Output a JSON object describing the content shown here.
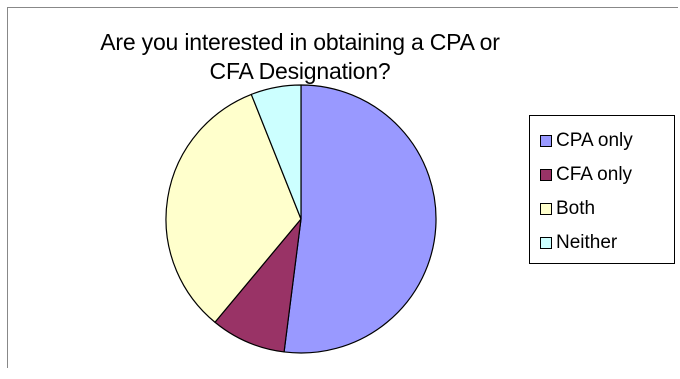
{
  "chart_data": {
    "type": "pie",
    "title_lines": [
      "Are you interested in obtaining a CPA or",
      "CFA Designation?"
    ],
    "categories": [
      "CPA only",
      "CFA only",
      "Both",
      "Neither"
    ],
    "values": [
      52,
      9,
      33,
      6
    ],
    "colors": [
      "#9999ff",
      "#993366",
      "#ffffcc",
      "#ccffff"
    ],
    "legend_position": "right",
    "start_angle_deg": 0,
    "direction": "clockwise"
  }
}
